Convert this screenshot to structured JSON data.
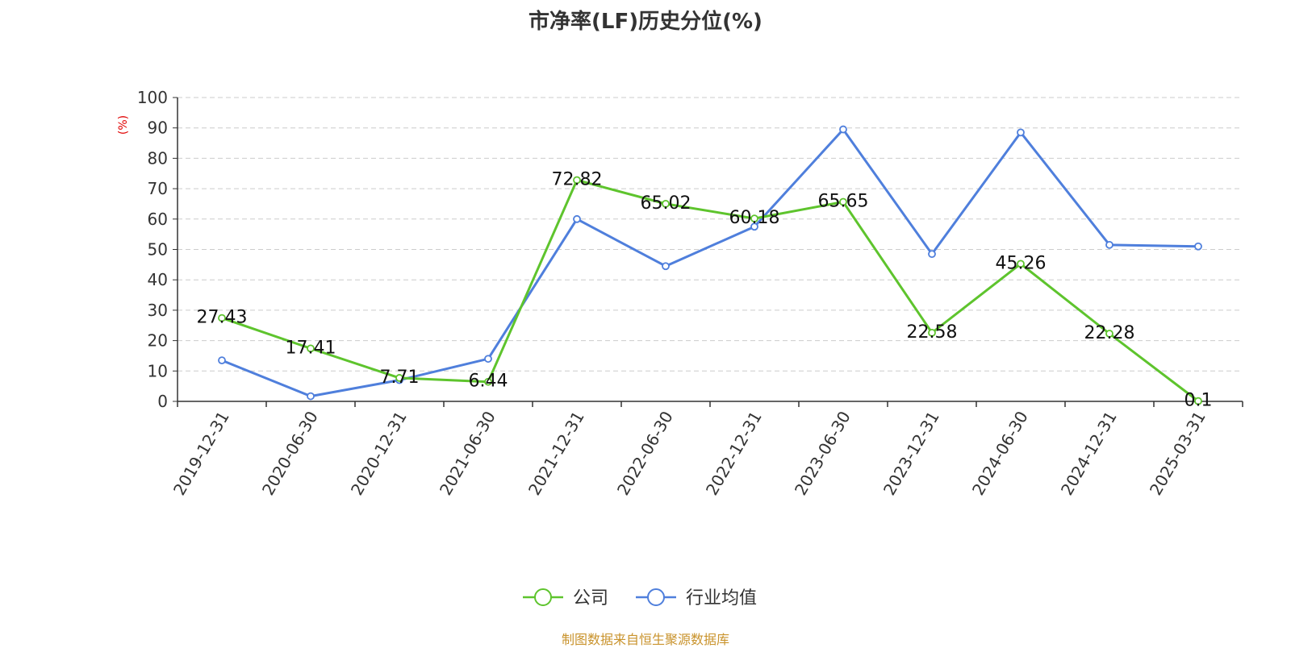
{
  "chart_data": {
    "type": "line",
    "title": "市净率(LF)历史分位(%)",
    "ylabel": "(%)",
    "ylim": [
      0,
      100
    ],
    "yticks": [
      0,
      10,
      20,
      30,
      40,
      50,
      60,
      70,
      80,
      90,
      100
    ],
    "grid": true,
    "legend_position": "bottom",
    "categories": [
      "2019-12-31",
      "2020-06-30",
      "2020-12-31",
      "2021-06-30",
      "2021-12-31",
      "2022-06-30",
      "2022-12-31",
      "2023-06-30",
      "2023-12-31",
      "2024-06-30",
      "2024-12-31",
      "2025-03-31"
    ],
    "series": [
      {
        "name": "公司",
        "color": "#5ec42d",
        "values": [
          27.43,
          17.41,
          7.71,
          6.44,
          72.82,
          65.02,
          60.18,
          65.65,
          22.58,
          45.26,
          22.28,
          0.1
        ],
        "labels": [
          "27.43",
          "17.41",
          "7.71",
          "6.44",
          "72.82",
          "65.02",
          "60.18",
          "65.65",
          "22.58",
          "45.26",
          "22.28",
          "0.1"
        ]
      },
      {
        "name": "行业均值",
        "color": "#4f7fdc",
        "values": [
          13.5,
          1.7,
          7.0,
          14.0,
          60.0,
          44.5,
          57.5,
          89.5,
          48.5,
          88.5,
          51.5,
          51.0
        ]
      }
    ]
  },
  "source_note": "制图数据来自恒生聚源数据库"
}
